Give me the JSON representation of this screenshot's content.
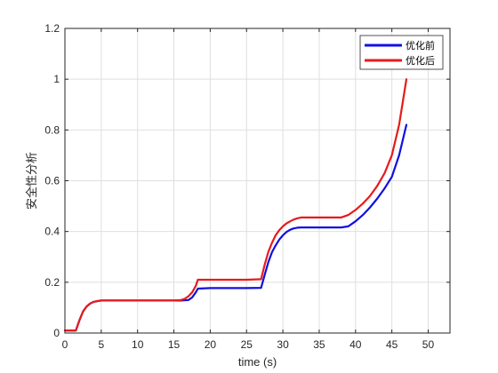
{
  "chart_data": {
    "type": "line",
    "xlabel": "time (s)",
    "ylabel": "安全性分析",
    "xlim": [
      0,
      53
    ],
    "ylim": [
      0,
      1.2
    ],
    "xticks": [
      0,
      5,
      10,
      15,
      20,
      25,
      30,
      35,
      40,
      45,
      50
    ],
    "yticks": [
      0,
      0.2,
      0.4,
      0.6,
      0.8,
      1,
      1.2
    ],
    "xtick_labels": [
      "0",
      "5",
      "10",
      "15",
      "20",
      "25",
      "30",
      "35",
      "40",
      "45",
      "50"
    ],
    "ytick_labels": [
      "0",
      "0.2",
      "0.4",
      "0.6",
      "0.8",
      "1",
      "1.2"
    ],
    "grid": true,
    "legend_position": "top-right",
    "series": [
      {
        "name": "优化前",
        "color": "#1010e0",
        "x": [
          0,
          1.5,
          2,
          2.5,
          3,
          3.5,
          4,
          4.5,
          5,
          6,
          10,
          15,
          16,
          17,
          17.5,
          18,
          18.3,
          20,
          25,
          27,
          27.5,
          28,
          28.5,
          29,
          29.5,
          30,
          30.5,
          31,
          31.5,
          32,
          32.5,
          35,
          38,
          39,
          40,
          41,
          42,
          43,
          44,
          45,
          46,
          47
        ],
        "y": [
          0.01,
          0.01,
          0.05,
          0.085,
          0.105,
          0.117,
          0.123,
          0.126,
          0.128,
          0.128,
          0.128,
          0.128,
          0.128,
          0.13,
          0.14,
          0.16,
          0.175,
          0.177,
          0.177,
          0.178,
          0.23,
          0.28,
          0.318,
          0.345,
          0.368,
          0.385,
          0.398,
          0.407,
          0.412,
          0.415,
          0.416,
          0.416,
          0.416,
          0.42,
          0.44,
          0.465,
          0.495,
          0.53,
          0.57,
          0.615,
          0.7,
          0.82
        ]
      },
      {
        "name": "优化后",
        "color": "#e61b1b",
        "x": [
          0,
          1.5,
          2,
          2.5,
          3,
          3.5,
          4,
          4.5,
          5,
          6,
          10,
          15,
          16,
          16.5,
          17,
          17.5,
          18,
          18.3,
          20,
          25,
          27,
          27.5,
          28,
          28.5,
          29,
          29.5,
          30,
          30.5,
          31,
          31.5,
          32,
          32.5,
          35,
          38,
          39,
          40,
          41,
          42,
          43,
          44,
          45,
          46,
          47
        ],
        "y": [
          0.01,
          0.01,
          0.05,
          0.085,
          0.105,
          0.117,
          0.123,
          0.126,
          0.128,
          0.128,
          0.128,
          0.128,
          0.13,
          0.135,
          0.145,
          0.16,
          0.185,
          0.21,
          0.21,
          0.21,
          0.212,
          0.27,
          0.32,
          0.355,
          0.385,
          0.405,
          0.42,
          0.432,
          0.44,
          0.447,
          0.452,
          0.455,
          0.455,
          0.455,
          0.465,
          0.485,
          0.51,
          0.54,
          0.58,
          0.63,
          0.7,
          0.82,
          1.0
        ]
      }
    ]
  }
}
